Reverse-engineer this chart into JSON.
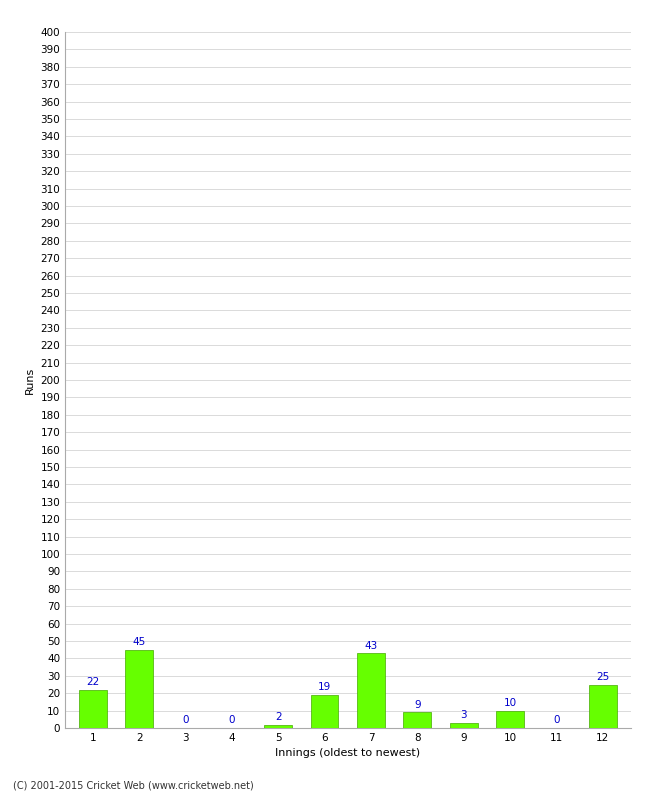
{
  "xlabel": "Innings (oldest to newest)",
  "ylabel": "Runs",
  "categories": [
    "1",
    "2",
    "3",
    "4",
    "5",
    "6",
    "7",
    "8",
    "9",
    "10",
    "11",
    "12"
  ],
  "values": [
    22,
    45,
    0,
    0,
    2,
    19,
    43,
    9,
    3,
    10,
    0,
    25
  ],
  "bar_color": "#66ff00",
  "bar_edge_color": "#44aa00",
  "label_color": "#0000cc",
  "ytick_step": 10,
  "ymin": 0,
  "ymax": 400,
  "background_color": "#ffffff",
  "grid_color": "#cccccc",
  "footer_text": "(C) 2001-2015 Cricket Web (www.cricketweb.net)",
  "label_fontsize": 7.5,
  "axis_label_fontsize": 8,
  "tick_fontsize": 7.5,
  "footer_fontsize": 7
}
